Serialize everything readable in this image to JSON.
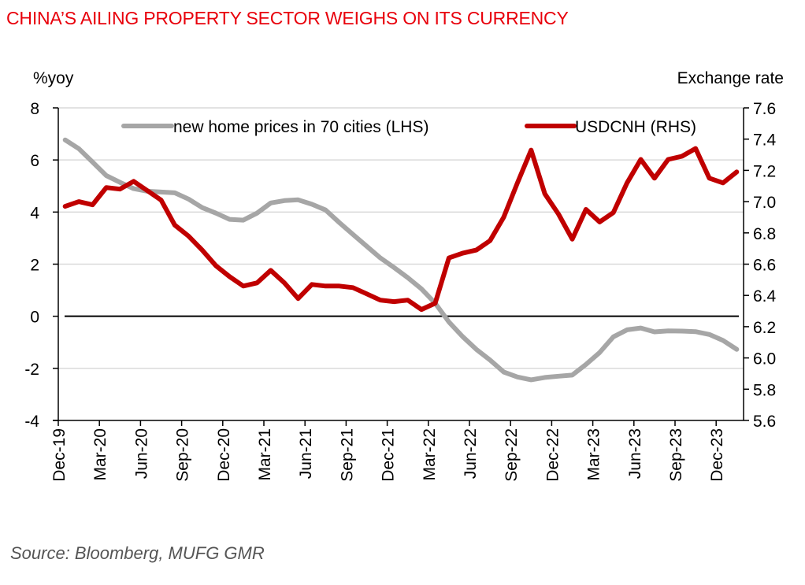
{
  "title": "CHINA’S AILING PROPERTY SECTOR WEIGHS ON ITS CURRENCY",
  "source": "Source: Bloomberg, MUFG GMR",
  "chart_data": {
    "type": "line",
    "title": "CHINA’S AILING PROPERTY SECTOR WEIGHS ON ITS CURRENCY",
    "ylabel_left": "%yoy",
    "ylabel_right": "Exchange rate",
    "xlabel": "",
    "ylim_left": [
      -4,
      8
    ],
    "ylim_right": [
      5.6,
      7.6
    ],
    "yticks_left": [
      "8",
      "6",
      "4",
      "2",
      "0",
      "-2",
      "-4"
    ],
    "yticks_left_values": [
      8,
      6,
      4,
      2,
      0,
      -2,
      -4
    ],
    "yticks_right": [
      "7.6",
      "7.4",
      "7.2",
      "7.0",
      "6.8",
      "6.6",
      "6.4",
      "6.2",
      "6.0",
      "5.8",
      "5.6"
    ],
    "yticks_right_values": [
      7.6,
      7.4,
      7.2,
      7.0,
      6.8,
      6.6,
      6.4,
      6.2,
      6.0,
      5.8,
      5.6
    ],
    "x_tick_labels": [
      "Dec-19",
      "Mar-20",
      "Jun-20",
      "Sep-20",
      "Dec-20",
      "Mar-21",
      "Jun-21",
      "Sep-21",
      "Dec-21",
      "Mar-22",
      "Jun-22",
      "Sep-22",
      "Dec-22",
      "Mar-23",
      "Jun-23",
      "Sep-23",
      "Dec-23"
    ],
    "x": [
      "Dec-19",
      "Jan-20",
      "Feb-20",
      "Mar-20",
      "Apr-20",
      "May-20",
      "Jun-20",
      "Jul-20",
      "Aug-20",
      "Sep-20",
      "Oct-20",
      "Nov-20",
      "Dec-20",
      "Jan-21",
      "Feb-21",
      "Mar-21",
      "Apr-21",
      "May-21",
      "Jun-21",
      "Jul-21",
      "Aug-21",
      "Sep-21",
      "Oct-21",
      "Nov-21",
      "Dec-21",
      "Jan-22",
      "Feb-22",
      "Mar-22",
      "Apr-22",
      "May-22",
      "Jun-22",
      "Jul-22",
      "Aug-22",
      "Sep-22",
      "Oct-22",
      "Nov-22",
      "Dec-22",
      "Jan-23",
      "Feb-23",
      "Mar-23",
      "Apr-23",
      "May-23",
      "Jun-23",
      "Jul-23",
      "Aug-23",
      "Sep-23",
      "Oct-23",
      "Nov-23",
      "Dec-23",
      "Jan-24"
    ],
    "grid": "horizontal",
    "zero_line": true,
    "legend_position": "top",
    "series": [
      {
        "name": "new home prices in 70 cities (LHS)",
        "axis": "left",
        "color": "#a6a6a6",
        "values": [
          6.77,
          6.43,
          5.92,
          5.4,
          5.14,
          4.9,
          4.8,
          4.77,
          4.74,
          4.5,
          4.17,
          3.96,
          3.72,
          3.69,
          3.96,
          4.35,
          4.44,
          4.47,
          4.3,
          4.08,
          3.6,
          3.14,
          2.69,
          2.24,
          1.87,
          1.48,
          1.05,
          0.5,
          -0.22,
          -0.78,
          -1.27,
          -1.68,
          -2.14,
          -2.33,
          -2.44,
          -2.35,
          -2.3,
          -2.26,
          -1.85,
          -1.39,
          -0.79,
          -0.52,
          -0.45,
          -0.6,
          -0.56,
          -0.57,
          -0.59,
          -0.7,
          -0.93,
          -1.27
        ]
      },
      {
        "name": "USDCNH (RHS)",
        "axis": "right",
        "color": "#c00000",
        "values": [
          6.97,
          7.0,
          6.98,
          7.09,
          7.08,
          7.13,
          7.07,
          7.01,
          6.85,
          6.78,
          6.69,
          6.59,
          6.52,
          6.46,
          6.48,
          6.56,
          6.48,
          6.38,
          6.47,
          6.46,
          6.46,
          6.45,
          6.41,
          6.37,
          6.36,
          6.37,
          6.31,
          6.35,
          6.64,
          6.67,
          6.69,
          6.75,
          6.9,
          7.12,
          7.33,
          7.05,
          6.92,
          6.76,
          6.95,
          6.87,
          6.93,
          7.12,
          7.27,
          7.15,
          7.27,
          7.29,
          7.34,
          7.15,
          7.12,
          7.19
        ]
      }
    ]
  }
}
